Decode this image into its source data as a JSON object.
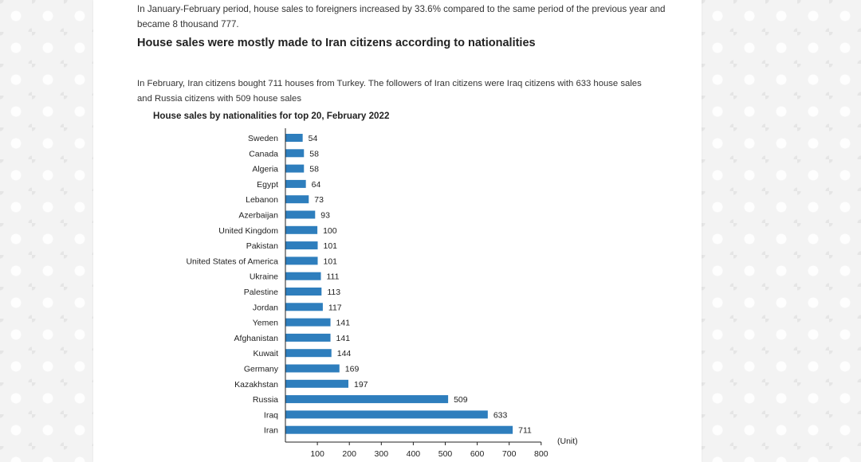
{
  "article": {
    "top_paragraph": "In January-February period, house sales to foreigners increased by 33.6% compared to the same period of the previous year and became 8 thousand 777.",
    "heading": "House sales were mostly made to Iran citizens according to nationalities",
    "intro": "In February, Iran citizens bought 711 houses from Turkey. The followers of Iran citizens were Iraq citizens with 633 house sales and Russia citizens with 509 house sales"
  },
  "chart_data": {
    "type": "bar",
    "orientation": "horizontal",
    "title": "House sales by nationalities for top 20, February 2022",
    "unit_label": "(Unit)",
    "categories": [
      "Sweden",
      "Canada",
      "Algeria",
      "Egypt",
      "Lebanon",
      "Azerbaijan",
      "United Kingdom",
      "Pakistan",
      "United States of America",
      "Ukraine",
      "Palestine",
      "Jordan",
      "Yemen",
      "Afghanistan",
      "Kuwait",
      "Germany",
      "Kazakhstan",
      "Russia",
      "Iraq",
      "Iran"
    ],
    "values": [
      54,
      58,
      58,
      64,
      73,
      93,
      100,
      101,
      101,
      111,
      113,
      117,
      141,
      141,
      144,
      169,
      197,
      509,
      633,
      711
    ],
    "xlim": [
      0,
      800
    ],
    "x_ticks": [
      100,
      200,
      300,
      400,
      500,
      600,
      700,
      800
    ],
    "bar_color": "#2e7ebd",
    "grid": false
  }
}
